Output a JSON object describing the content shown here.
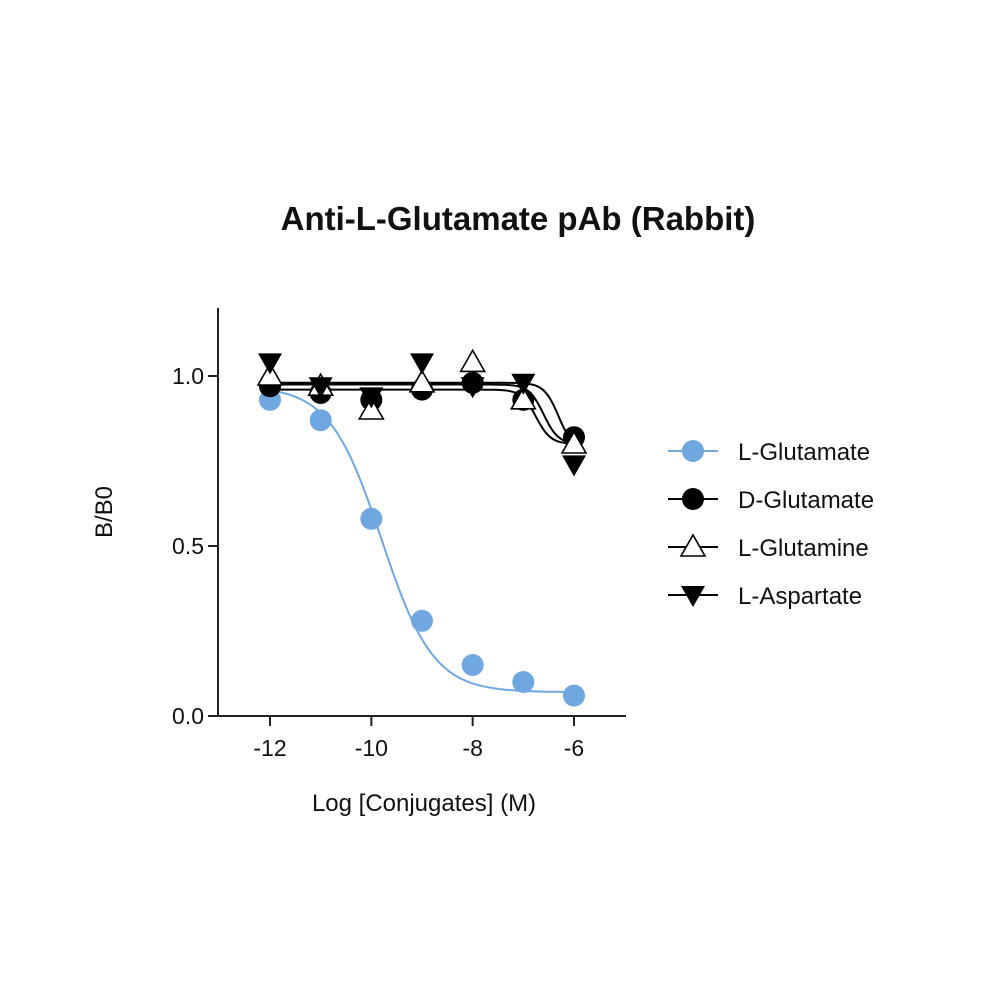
{
  "chart_data": {
    "type": "scatter",
    "title": "Anti-L-Glutamate pAb (Rabbit)",
    "xlabel": "Log [Conjugates] (M)",
    "ylabel": "B/B0",
    "xlim": [
      -13.0,
      -5.0
    ],
    "ylim": [
      0.0,
      1.2
    ],
    "xticks": [
      -12,
      -10,
      -8,
      -6
    ],
    "xtick_labels": [
      "-12",
      "-10",
      "-8",
      "-6"
    ],
    "yticks": [
      0.0,
      0.5,
      1.0
    ],
    "ytick_labels": [
      "0.0",
      "0.5",
      "1.0"
    ],
    "legend_position": "right",
    "grid": false,
    "series": [
      {
        "name": "L-Glutamate",
        "marker": "circle-filled",
        "color": "#6fa8e0",
        "x": [
          -12,
          -11,
          -10,
          -9,
          -8,
          -7,
          -6
        ],
        "y": [
          0.93,
          0.87,
          0.58,
          0.28,
          0.15,
          0.1,
          0.06
        ],
        "fit": {
          "top": 0.97,
          "bottom": 0.07,
          "logEC50": -9.8,
          "hill": -0.85
        }
      },
      {
        "name": "D-Glutamate",
        "marker": "circle-filled",
        "color": "#000000",
        "x": [
          -12,
          -11,
          -10,
          -9,
          -8,
          -7,
          -6
        ],
        "y": [
          0.97,
          0.95,
          0.93,
          0.96,
          0.98,
          0.93,
          0.82
        ],
        "fit": {
          "top": 0.96,
          "bottom": 0.8,
          "logEC50": -6.75,
          "hill": -3.0
        }
      },
      {
        "name": "L-Glutamine",
        "marker": "triangle-up-open",
        "color": "#000000",
        "x": [
          -12,
          -11,
          -10,
          -9,
          -8,
          -7,
          -6
        ],
        "y": [
          1.0,
          0.97,
          0.9,
          0.98,
          1.04,
          0.93,
          0.8
        ],
        "fit": {
          "top": 0.975,
          "bottom": 0.8,
          "logEC50": -6.6,
          "hill": -3.0
        }
      },
      {
        "name": "L-Aspartate",
        "marker": "triangle-down-filled",
        "color": "#000000",
        "x": [
          -12,
          -11,
          -10,
          -9,
          -8,
          -7,
          -6
        ],
        "y": [
          1.04,
          0.97,
          0.94,
          1.04,
          0.97,
          0.98,
          0.74
        ],
        "fit": {
          "top": 0.98,
          "bottom": 0.78,
          "logEC50": -6.3,
          "hill": -3.0
        }
      }
    ]
  }
}
